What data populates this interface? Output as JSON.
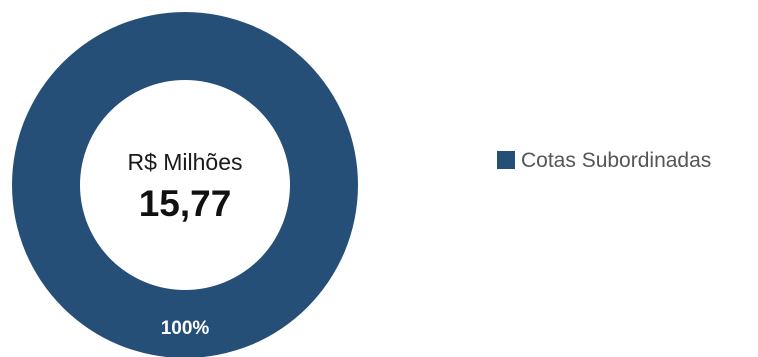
{
  "chart_data": {
    "type": "pie",
    "variant": "donut",
    "center_label": {
      "unit": "R$ Milhões",
      "total": "15,77"
    },
    "slices": [
      {
        "name": "Cotas Subordinadas",
        "value": 100,
        "label": "100%",
        "color": "#264F78"
      }
    ],
    "legend": {
      "placement": "right"
    }
  }
}
